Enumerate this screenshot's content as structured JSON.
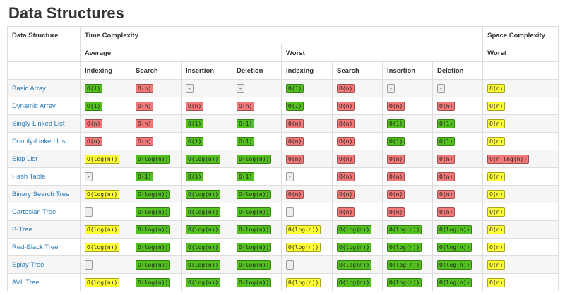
{
  "header": {
    "title": "Data Structures"
  },
  "table": {
    "columns": {
      "name": "Data Structure",
      "time": "Time Complexity",
      "space": "Space Complexity",
      "average": "Average",
      "worst": "Worst",
      "space_worst": "Worst",
      "average_operations": [
        "Indexing",
        "Search",
        "Insertion",
        "Deletion"
      ],
      "worst_operations": [
        "Indexing",
        "Search",
        "Insertion",
        "Deletion"
      ]
    },
    "rows": [
      {
        "name": "Basic Array",
        "cells": [
          {
            "text": "O(1)",
            "color": "#53c21f"
          },
          {
            "text": "O(n)",
            "color": "#f47a7a"
          },
          {
            "text": "-",
            "color": "#eeeeee"
          },
          {
            "text": "-",
            "color": "#eeeeee"
          },
          {
            "text": "O(1)",
            "color": "#53c21f"
          },
          {
            "text": "O(n)",
            "color": "#f47a7a"
          },
          {
            "text": "-",
            "color": "#eeeeee"
          },
          {
            "text": "-",
            "color": "#eeeeee"
          },
          {
            "text": "O(n)",
            "color": "#ffff33"
          }
        ]
      },
      {
        "name": "Dynamic Array",
        "cells": [
          {
            "text": "O(1)",
            "color": "#53c21f"
          },
          {
            "text": "O(n)",
            "color": "#f47a7a"
          },
          {
            "text": "O(n)",
            "color": "#f47a7a"
          },
          {
            "text": "O(n)",
            "color": "#f47a7a"
          },
          {
            "text": "O(1)",
            "color": "#53c21f"
          },
          {
            "text": "O(n)",
            "color": "#f47a7a"
          },
          {
            "text": "O(n)",
            "color": "#f47a7a"
          },
          {
            "text": "O(n)",
            "color": "#f47a7a"
          },
          {
            "text": "O(n)",
            "color": "#ffff33"
          }
        ]
      },
      {
        "name": "Singly-Linked List",
        "cells": [
          {
            "text": "O(n)",
            "color": "#f47a7a"
          },
          {
            "text": "O(n)",
            "color": "#f47a7a"
          },
          {
            "text": "O(1)",
            "color": "#53c21f"
          },
          {
            "text": "O(1)",
            "color": "#53c21f"
          },
          {
            "text": "O(n)",
            "color": "#f47a7a"
          },
          {
            "text": "O(n)",
            "color": "#f47a7a"
          },
          {
            "text": "O(1)",
            "color": "#53c21f"
          },
          {
            "text": "O(1)",
            "color": "#53c21f"
          },
          {
            "text": "O(n)",
            "color": "#ffff33"
          }
        ]
      },
      {
        "name": "Doubly-Linked List",
        "cells": [
          {
            "text": "O(n)",
            "color": "#f47a7a"
          },
          {
            "text": "O(n)",
            "color": "#f47a7a"
          },
          {
            "text": "O(1)",
            "color": "#53c21f"
          },
          {
            "text": "O(1)",
            "color": "#53c21f"
          },
          {
            "text": "O(n)",
            "color": "#f47a7a"
          },
          {
            "text": "O(n)",
            "color": "#f47a7a"
          },
          {
            "text": "O(1)",
            "color": "#53c21f"
          },
          {
            "text": "O(1)",
            "color": "#53c21f"
          },
          {
            "text": "O(n)",
            "color": "#ffff33"
          }
        ]
      },
      {
        "name": "Skip List",
        "cells": [
          {
            "text": "O(log(n))",
            "color": "#ffff33"
          },
          {
            "text": "O(log(n))",
            "color": "#53c21f"
          },
          {
            "text": "O(log(n))",
            "color": "#53c21f"
          },
          {
            "text": "O(log(n))",
            "color": "#53c21f"
          },
          {
            "text": "O(n)",
            "color": "#f47a7a"
          },
          {
            "text": "O(n)",
            "color": "#f47a7a"
          },
          {
            "text": "O(n)",
            "color": "#f47a7a"
          },
          {
            "text": "O(n)",
            "color": "#f47a7a"
          },
          {
            "text": "O(n log(n))",
            "color": "#f47a7a"
          }
        ]
      },
      {
        "name": "Hash Table",
        "cells": [
          {
            "text": "-",
            "color": "#eeeeee"
          },
          {
            "text": "O(1)",
            "color": "#53c21f"
          },
          {
            "text": "O(1)",
            "color": "#53c21f"
          },
          {
            "text": "O(1)",
            "color": "#53c21f"
          },
          {
            "text": "-",
            "color": "#eeeeee"
          },
          {
            "text": "O(n)",
            "color": "#f47a7a"
          },
          {
            "text": "O(n)",
            "color": "#f47a7a"
          },
          {
            "text": "O(n)",
            "color": "#f47a7a"
          },
          {
            "text": "O(n)",
            "color": "#ffff33"
          }
        ]
      },
      {
        "name": "Binary Search Tree",
        "cells": [
          {
            "text": "O(log(n))",
            "color": "#ffff33"
          },
          {
            "text": "O(log(n))",
            "color": "#53c21f"
          },
          {
            "text": "O(log(n))",
            "color": "#53c21f"
          },
          {
            "text": "O(log(n))",
            "color": "#53c21f"
          },
          {
            "text": "O(n)",
            "color": "#f47a7a"
          },
          {
            "text": "O(n)",
            "color": "#f47a7a"
          },
          {
            "text": "O(n)",
            "color": "#f47a7a"
          },
          {
            "text": "O(n)",
            "color": "#f47a7a"
          },
          {
            "text": "O(n)",
            "color": "#ffff33"
          }
        ]
      },
      {
        "name": "Cartesian Tree",
        "cells": [
          {
            "text": "-",
            "color": "#eeeeee"
          },
          {
            "text": "O(log(n))",
            "color": "#53c21f"
          },
          {
            "text": "O(log(n))",
            "color": "#53c21f"
          },
          {
            "text": "O(log(n))",
            "color": "#53c21f"
          },
          {
            "text": "-",
            "color": "#eeeeee"
          },
          {
            "text": "O(n)",
            "color": "#f47a7a"
          },
          {
            "text": "O(n)",
            "color": "#f47a7a"
          },
          {
            "text": "O(n)",
            "color": "#f47a7a"
          },
          {
            "text": "O(n)",
            "color": "#ffff33"
          }
        ]
      },
      {
        "name": "B-Tree",
        "cells": [
          {
            "text": "O(log(n))",
            "color": "#ffff33"
          },
          {
            "text": "O(log(n))",
            "color": "#53c21f"
          },
          {
            "text": "O(log(n))",
            "color": "#53c21f"
          },
          {
            "text": "O(log(n))",
            "color": "#53c21f"
          },
          {
            "text": "O(log(n))",
            "color": "#ffff33"
          },
          {
            "text": "O(log(n))",
            "color": "#53c21f"
          },
          {
            "text": "O(log(n))",
            "color": "#53c21f"
          },
          {
            "text": "O(log(n))",
            "color": "#53c21f"
          },
          {
            "text": "O(n)",
            "color": "#ffff33"
          }
        ]
      },
      {
        "name": "Red-Black Tree",
        "cells": [
          {
            "text": "O(log(n))",
            "color": "#ffff33"
          },
          {
            "text": "O(log(n))",
            "color": "#53c21f"
          },
          {
            "text": "O(log(n))",
            "color": "#53c21f"
          },
          {
            "text": "O(log(n))",
            "color": "#53c21f"
          },
          {
            "text": "O(log(n))",
            "color": "#ffff33"
          },
          {
            "text": "O(log(n))",
            "color": "#53c21f"
          },
          {
            "text": "O(log(n))",
            "color": "#53c21f"
          },
          {
            "text": "O(log(n))",
            "color": "#53c21f"
          },
          {
            "text": "O(n)",
            "color": "#ffff33"
          }
        ]
      },
      {
        "name": "Splay Tree",
        "cells": [
          {
            "text": "-",
            "color": "#eeeeee"
          },
          {
            "text": "O(log(n))",
            "color": "#53c21f"
          },
          {
            "text": "O(log(n))",
            "color": "#53c21f"
          },
          {
            "text": "O(log(n))",
            "color": "#53c21f"
          },
          {
            "text": "-",
            "color": "#eeeeee"
          },
          {
            "text": "O(log(n))",
            "color": "#53c21f"
          },
          {
            "text": "O(log(n))",
            "color": "#53c21f"
          },
          {
            "text": "O(log(n))",
            "color": "#53c21f"
          },
          {
            "text": "O(n)",
            "color": "#ffff33"
          }
        ]
      },
      {
        "name": "AVL Tree",
        "cells": [
          {
            "text": "O(log(n))",
            "color": "#ffff33"
          },
          {
            "text": "O(log(n))",
            "color": "#53c21f"
          },
          {
            "text": "O(log(n))",
            "color": "#53c21f"
          },
          {
            "text": "O(log(n))",
            "color": "#53c21f"
          },
          {
            "text": "O(log(n))",
            "color": "#ffff33"
          },
          {
            "text": "O(log(n))",
            "color": "#53c21f"
          },
          {
            "text": "O(log(n))",
            "color": "#53c21f"
          },
          {
            "text": "O(log(n))",
            "color": "#53c21f"
          },
          {
            "text": "O(n)",
            "color": "#ffff33"
          }
        ]
      }
    ]
  }
}
